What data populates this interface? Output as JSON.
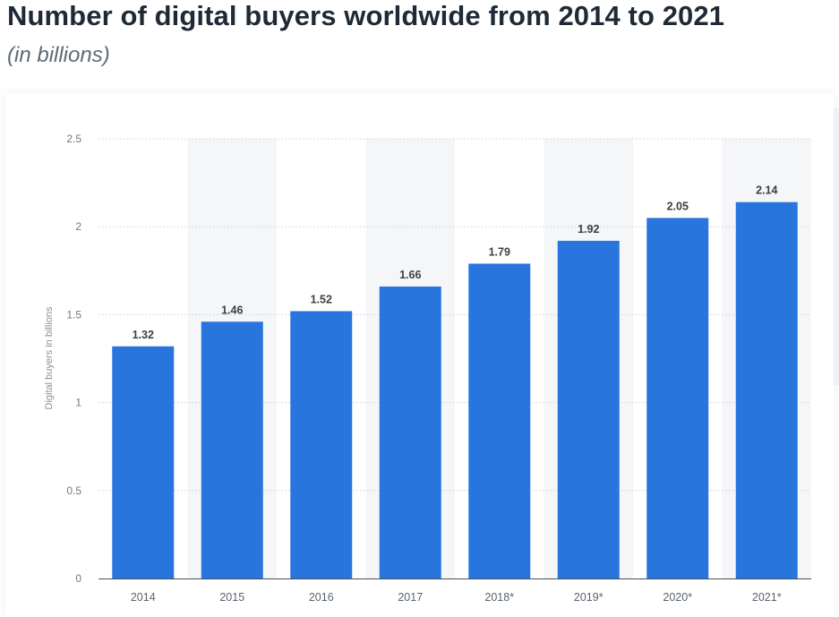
{
  "chart_data": {
    "type": "bar",
    "title": "Number of digital buyers worldwide from 2014 to 2021",
    "subtitle": "(in billions)",
    "categories": [
      "2014",
      "2015",
      "2016",
      "2017",
      "2018*",
      "2019*",
      "2020*",
      "2021*"
    ],
    "values": [
      1.32,
      1.46,
      1.52,
      1.66,
      1.79,
      1.92,
      2.05,
      2.14
    ],
    "data_labels": [
      "1.32",
      "1.46",
      "1.52",
      "1.66",
      "1.79",
      "1.92",
      "2.05",
      "2.14"
    ],
    "ylabel": "Digital buyers in billions",
    "xlabel": "",
    "ylim": [
      0,
      2.5
    ],
    "yticks": [
      0,
      0.5,
      1,
      1.5,
      2,
      2.5
    ],
    "ytick_labels": [
      "0",
      "0.5",
      "1",
      "1.5",
      "2",
      "2.5"
    ],
    "grid": true,
    "legend": "none",
    "bar_color": "#2876dd",
    "band_color": "#f5f6f8",
    "grid_color": "#c9cdd2"
  }
}
